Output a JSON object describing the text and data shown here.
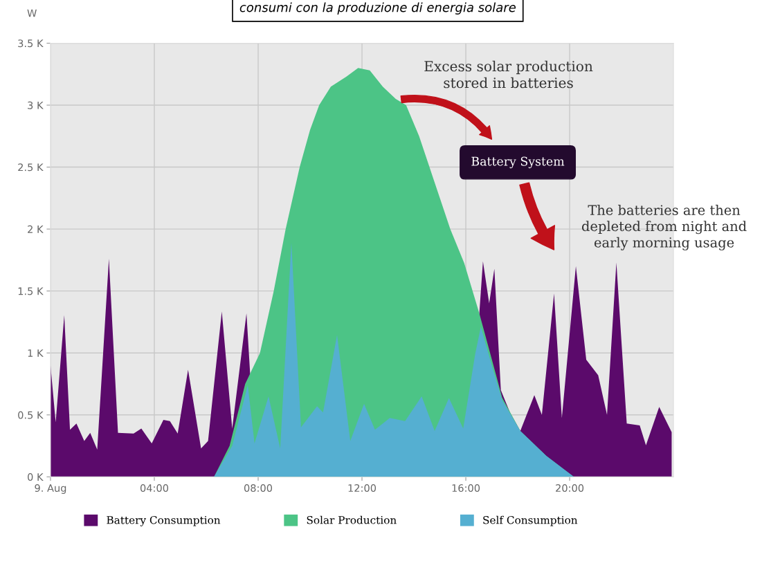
{
  "chart_data": {
    "type": "area",
    "title": "consumi con la produzione di energia solare",
    "ylabel": "W",
    "xlim": [
      0,
      24
    ],
    "xticks": [
      {
        "value": 0,
        "label": "9. Aug"
      },
      {
        "value": 4,
        "label": "04:00"
      },
      {
        "value": 8,
        "label": "08:00"
      },
      {
        "value": 12,
        "label": "12:00"
      },
      {
        "value": 16,
        "label": "16:00"
      },
      {
        "value": 20,
        "label": "20:00"
      }
    ],
    "ylim": [
      0,
      3500
    ],
    "yticks": [
      {
        "value": 0,
        "label": "0 K"
      },
      {
        "value": 500,
        "label": "0.5 K"
      },
      {
        "value": 1000,
        "label": "1 K"
      },
      {
        "value": 1500,
        "label": "1.5 K"
      },
      {
        "value": 2000,
        "label": "2 K"
      },
      {
        "value": 2500,
        "label": "2.5 K"
      },
      {
        "value": 3000,
        "label": "3 K"
      },
      {
        "value": 3500,
        "label": "3.5 K"
      }
    ],
    "grid": true,
    "legend": "bottom",
    "series": [
      {
        "name": "Battery Consumption",
        "color": "#5b0a6b",
        "x": [
          0.0,
          0.2,
          0.53,
          0.75,
          1.0,
          1.3,
          1.53,
          1.8,
          2.25,
          2.6,
          3.2,
          3.5,
          3.9,
          4.35,
          4.6,
          4.9,
          5.3,
          5.8,
          6.07,
          6.6,
          7.0,
          7.55,
          7.7,
          8.0,
          16.3,
          16.52,
          16.66,
          16.9,
          17.1,
          17.35,
          17.7,
          18.1,
          18.64,
          18.93,
          19.4,
          19.7,
          20.24,
          20.64,
          21.1,
          21.44,
          21.8,
          22.2,
          22.7,
          22.94,
          23.45,
          23.93
        ],
        "values": [
          900,
          440,
          1305,
          380,
          430,
          290,
          355,
          220,
          1760,
          355,
          350,
          390,
          270,
          460,
          450,
          350,
          865,
          230,
          290,
          1335,
          390,
          1320,
          800,
          null,
          null,
          1320,
          1740,
          1400,
          1680,
          700,
          520,
          370,
          660,
          500,
          1480,
          475,
          1700,
          945,
          820,
          500,
          1730,
          430,
          415,
          255,
          565,
          360
        ]
      },
      {
        "name": "Solar Production",
        "color": "#4cc486",
        "x": [
          6.3,
          6.9,
          7.5,
          8.07,
          8.6,
          9.06,
          9.6,
          10.0,
          10.35,
          10.8,
          11.4,
          11.85,
          12.3,
          12.8,
          13.3,
          13.7,
          14.2,
          14.6,
          15.0,
          15.4,
          15.94,
          16.52,
          17.0,
          17.4,
          18.1,
          19.1,
          20.16
        ],
        "values": [
          0,
          250,
          750,
          1000,
          1500,
          2000,
          2500,
          2800,
          3000,
          3150,
          3230,
          3300,
          3280,
          3150,
          3050,
          3000,
          2750,
          2500,
          2250,
          2000,
          1725,
          1320,
          950,
          640,
          370,
          170,
          0
        ]
      },
      {
        "name": "Self Consumption",
        "color": "#55afd1",
        "x": [
          6.3,
          7.0,
          7.6,
          7.86,
          8.4,
          8.85,
          9.28,
          9.65,
          10.27,
          10.5,
          11.04,
          11.55,
          12.08,
          12.5,
          13.07,
          13.66,
          14.3,
          14.8,
          15.35,
          15.9,
          16.36,
          16.58,
          17.0,
          17.4,
          18.1,
          19.1,
          20.16
        ],
        "values": [
          0,
          250,
          740,
          270,
          650,
          230,
          1890,
          400,
          570,
          520,
          1145,
          290,
          590,
          380,
          475,
          450,
          650,
          370,
          635,
          390,
          990,
          1210,
          900,
          620,
          370,
          170,
          0
        ]
      }
    ],
    "annotations": [
      "Excess solar production\nstored in batteries",
      "Battery System",
      "The batteries are then\ndepleted from night and\nearly morning usage"
    ]
  }
}
